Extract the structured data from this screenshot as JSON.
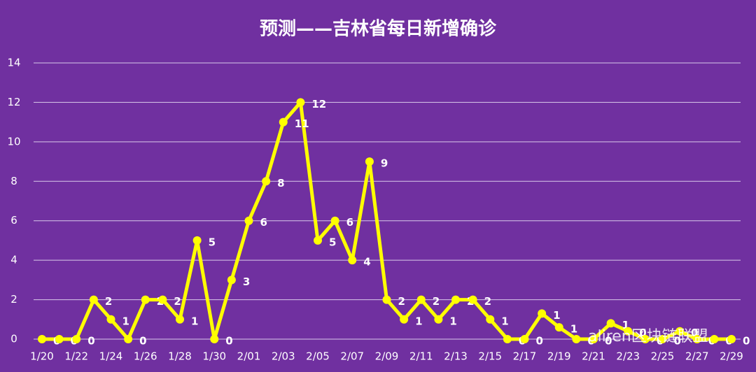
{
  "chart_data": {
    "type": "line",
    "title": "预测——吉林省每日新增确诊",
    "categories": [
      "1/20",
      null,
      "1/22",
      null,
      "1/24",
      null,
      "1/26",
      null,
      "1/28",
      null,
      "1/30",
      null,
      "2/01",
      null,
      "2/03",
      null,
      "2/05",
      null,
      "2/07",
      null,
      "2/09",
      null,
      "2/11",
      null,
      "2/13",
      null,
      "2/15",
      null,
      "2/17",
      null,
      "2/19",
      null,
      "2/21",
      null,
      "2/23",
      null,
      "2/25",
      null,
      "2/27",
      null,
      "2/29"
    ],
    "series": [
      {
        "name": "吉林省每日新增确诊",
        "color": "#ffff00",
        "values": [
          0,
          0,
          0,
          2,
          1,
          0,
          2,
          2,
          1,
          5,
          0,
          3,
          6,
          8,
          11,
          12,
          5,
          6,
          4,
          9,
          2,
          1,
          2,
          1,
          2,
          2,
          1,
          0,
          0,
          1.3,
          0.6,
          0,
          0,
          0.8,
          0.4,
          0,
          0,
          0.4,
          0,
          0,
          0
        ],
        "value_labels": [
          "0",
          "0",
          "0",
          "2",
          "1",
          "0",
          "2",
          "2",
          "1",
          "5",
          "0",
          "3",
          "6",
          "8",
          "11",
          "12",
          "5",
          "6",
          "4",
          "9",
          "2",
          "1",
          "2",
          "1",
          "2",
          "2",
          "1",
          "0",
          "0",
          "1",
          "1",
          "0",
          "0",
          "1",
          "0",
          "0",
          "0",
          "0",
          "0",
          "0",
          "0"
        ]
      }
    ],
    "ylim": [
      0,
      14
    ],
    "yticks": [
      0,
      2,
      4,
      6,
      8,
      10,
      12,
      14
    ],
    "grid": true,
    "watermark": "aliren区块链联盟"
  }
}
